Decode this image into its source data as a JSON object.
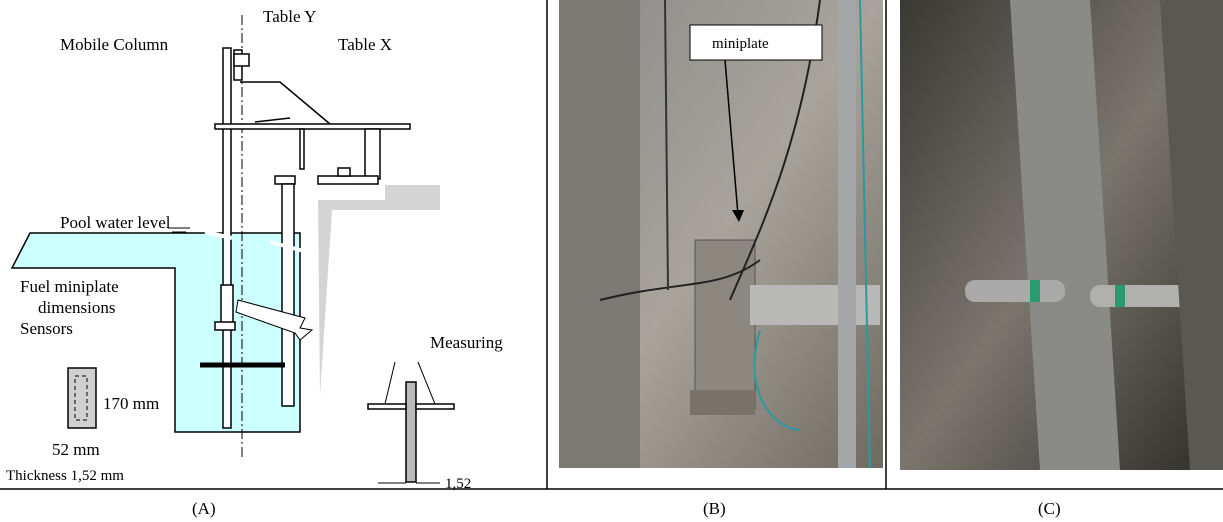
{
  "panel_a": {
    "caption": "(A)",
    "labels": {
      "table_y": "Table Y",
      "mobile_column": "Mobile Column",
      "table_x": "Table X",
      "pool_water_level": "Pool water level",
      "fuel_miniplate": "Fuel miniplate",
      "dimensions": "dimensions",
      "sensors": "Sensors",
      "measuring": "Measuring",
      "height": "170 mm",
      "width": "52 mm",
      "thickness": "Thickness 1,52 mm",
      "gap": "1,52"
    }
  },
  "panel_b": {
    "caption": "(B)",
    "callout": "miniplate"
  },
  "panel_c": {
    "caption": "(C)"
  }
}
